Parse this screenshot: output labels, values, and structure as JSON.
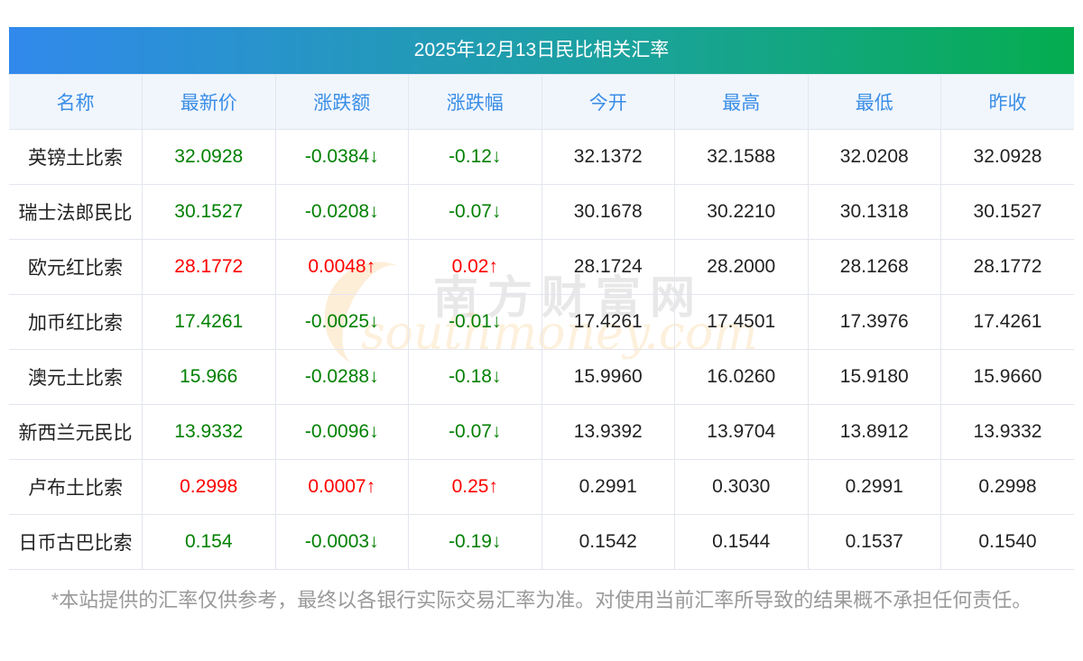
{
  "title": "2025年12月13日民比相关汇率",
  "headers": [
    "名称",
    "最新价",
    "涨跌额",
    "涨跌幅",
    "今开",
    "最高",
    "最低",
    "昨收"
  ],
  "rows": [
    {
      "name": "英镑土比索",
      "price": "32.0928",
      "change": "-0.0384↓",
      "pct": "-0.12↓",
      "open": "32.1372",
      "high": "32.1588",
      "low": "32.0208",
      "prev": "32.0928",
      "dir": "down"
    },
    {
      "name": "瑞士法郎民比",
      "price": "30.1527",
      "change": "-0.0208↓",
      "pct": "-0.07↓",
      "open": "30.1678",
      "high": "30.2210",
      "low": "30.1318",
      "prev": "30.1527",
      "dir": "down"
    },
    {
      "name": "欧元红比索",
      "price": "28.1772",
      "change": "0.0048↑",
      "pct": "0.02↑",
      "open": "28.1724",
      "high": "28.2000",
      "low": "28.1268",
      "prev": "28.1772",
      "dir": "up"
    },
    {
      "name": "加币红比索",
      "price": "17.4261",
      "change": "-0.0025↓",
      "pct": "-0.01↓",
      "open": "17.4261",
      "high": "17.4501",
      "low": "17.3976",
      "prev": "17.4261",
      "dir": "down"
    },
    {
      "name": "澳元土比索",
      "price": "15.966",
      "change": "-0.0288↓",
      "pct": "-0.18↓",
      "open": "15.9960",
      "high": "16.0260",
      "low": "15.9180",
      "prev": "15.9660",
      "dir": "down"
    },
    {
      "name": "新西兰元民比",
      "price": "13.9332",
      "change": "-0.0096↓",
      "pct": "-0.07↓",
      "open": "13.9392",
      "high": "13.9704",
      "low": "13.8912",
      "prev": "13.9332",
      "dir": "down"
    },
    {
      "name": "卢布土比索",
      "price": "0.2998",
      "change": "0.0007↑",
      "pct": "0.25↑",
      "open": "0.2991",
      "high": "0.3030",
      "low": "0.2991",
      "prev": "0.2998",
      "dir": "up"
    },
    {
      "name": "日币古巴比索",
      "price": "0.154",
      "change": "-0.0003↓",
      "pct": "-0.19↓",
      "open": "0.1542",
      "high": "0.1544",
      "low": "0.1537",
      "prev": "0.1540",
      "dir": "down"
    }
  ],
  "footer": "*本站提供的汇率仅供参考，最终以各银行实际交易汇率为准。对使用当前汇率所导致的结果概不承担任何责任。",
  "watermark": {
    "cn": "南方财富网",
    "en": "southmoney.com"
  },
  "colors": {
    "up": "#ff0000",
    "down": "#008000",
    "header_text": "#3a8ee6"
  }
}
